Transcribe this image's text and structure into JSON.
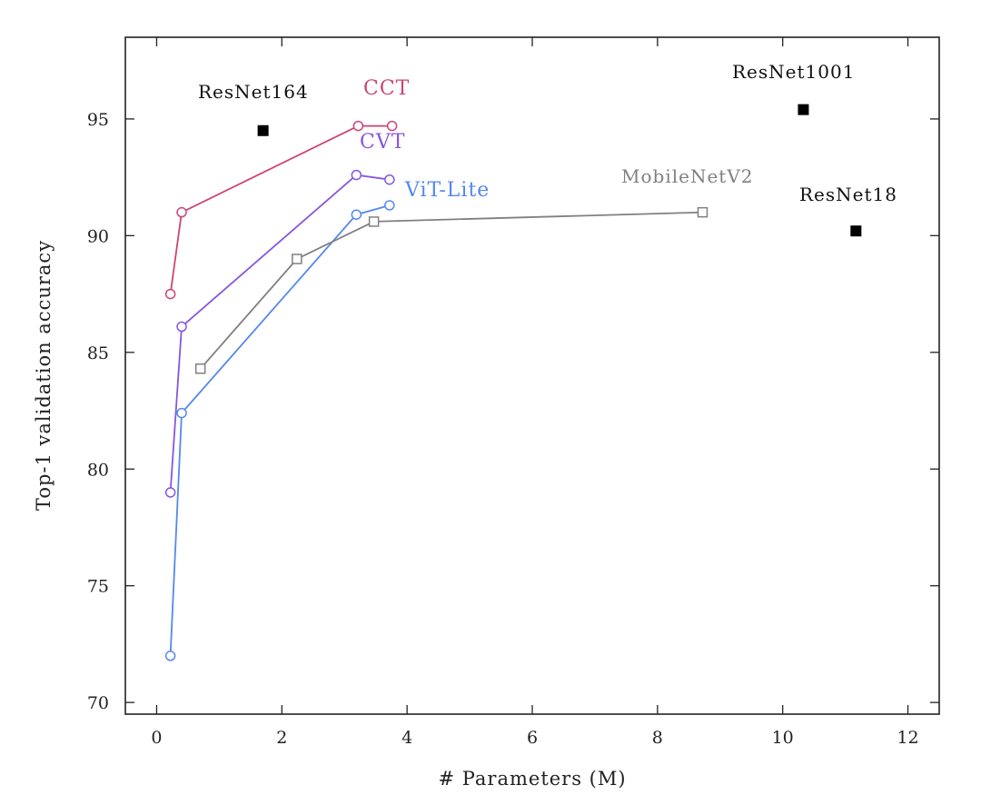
{
  "chart_data": {
    "type": "line",
    "title": "",
    "xlabel": "# Parameters (M)",
    "ylabel": "Top-1 validation accuracy",
    "xlim": [
      -0.5,
      12.5
    ],
    "ylim": [
      69.5,
      98.5
    ],
    "xticks": [
      0,
      2,
      4,
      6,
      8,
      10,
      12
    ],
    "yticks": [
      70,
      75,
      80,
      85,
      90,
      95
    ],
    "grid": false,
    "series": [
      {
        "name": "CCT",
        "color": "#cc4477",
        "marker": "circle",
        "x": [
          0.22,
          0.4,
          3.22,
          3.76
        ],
        "y": [
          87.5,
          91.0,
          94.7,
          94.7
        ]
      },
      {
        "name": "CVT",
        "color": "#8855dd",
        "marker": "circle",
        "x": [
          0.22,
          0.4,
          3.19,
          3.72
        ],
        "y": [
          79.0,
          86.1,
          92.6,
          92.4
        ]
      },
      {
        "name": "ViT-Lite",
        "color": "#5588ee",
        "marker": "circle",
        "x": [
          0.22,
          0.4,
          3.19,
          3.72
        ],
        "y": [
          72.0,
          82.4,
          90.9,
          91.3
        ]
      },
      {
        "name": "MobileNetV2",
        "color": "#808080",
        "marker": "square",
        "x": [
          0.7,
          2.24,
          3.47,
          8.72
        ],
        "y": [
          84.3,
          89.0,
          90.6,
          91.0
        ]
      }
    ],
    "points": [
      {
        "name": "ResNet164",
        "x": 1.7,
        "y": 94.5
      },
      {
        "name": "ResNet1001",
        "x": 10.33,
        "y": 95.4
      },
      {
        "name": "ResNet18",
        "x": 11.17,
        "y": 90.2
      }
    ]
  }
}
